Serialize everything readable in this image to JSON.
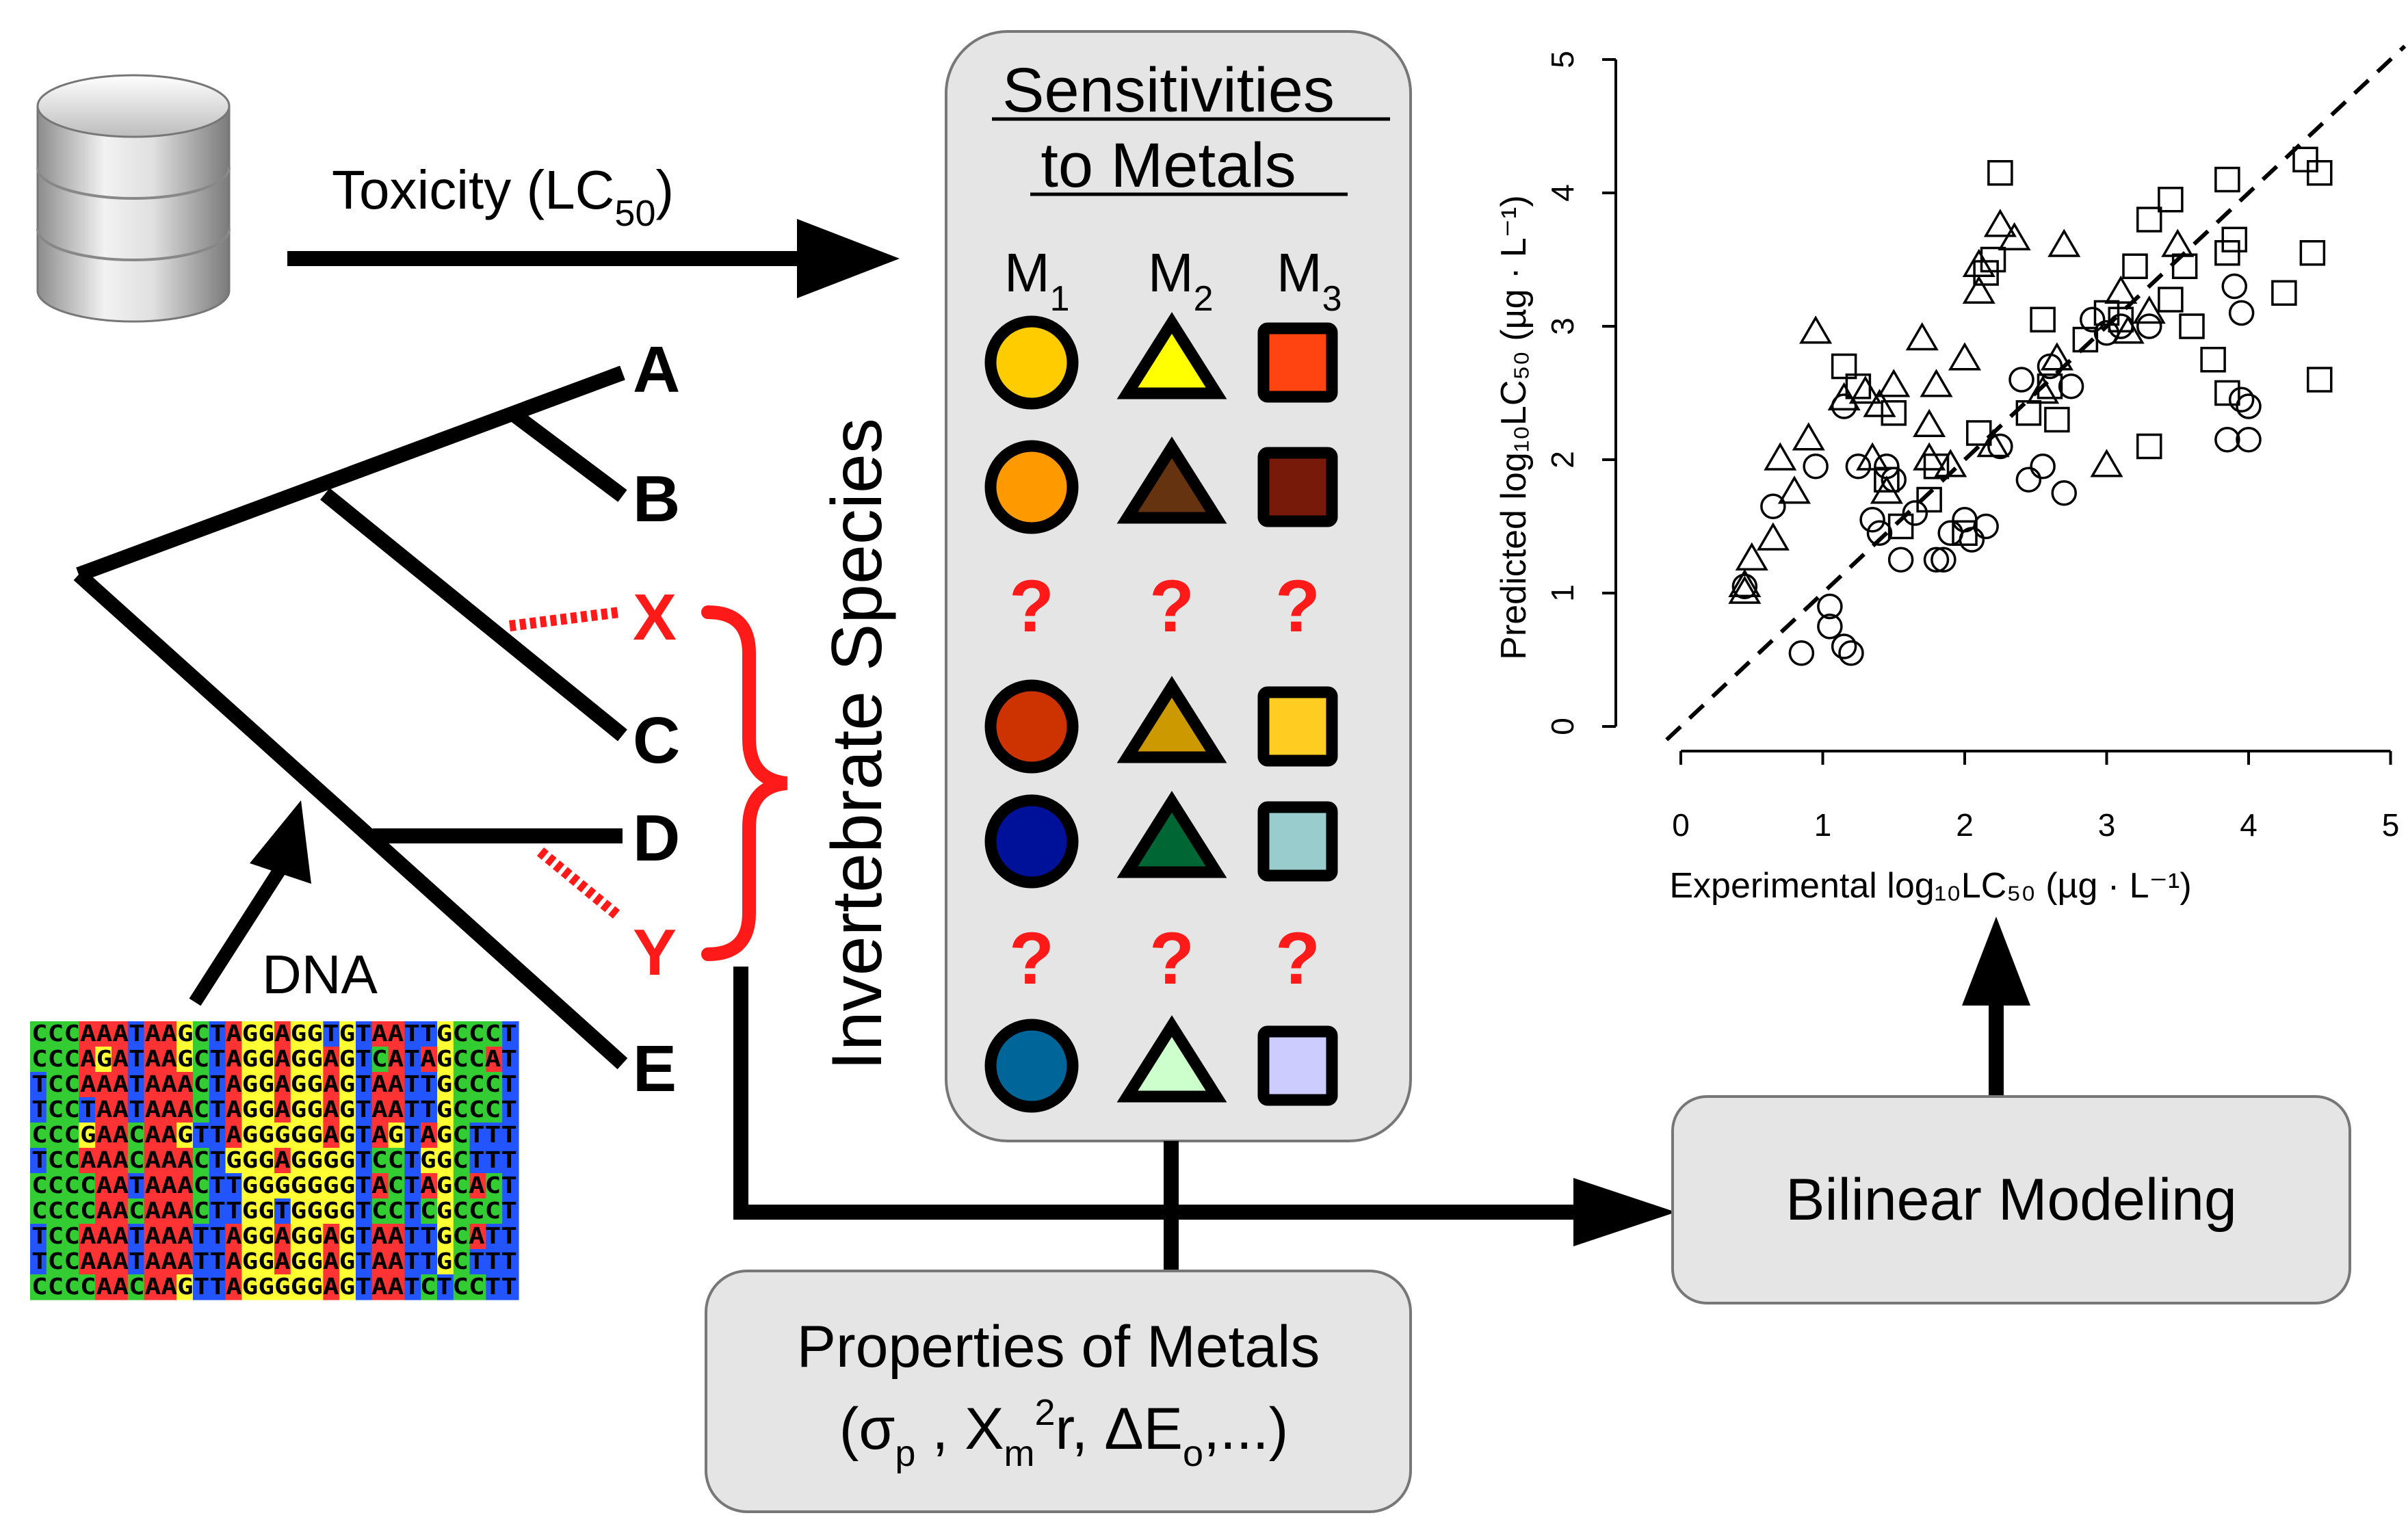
{
  "database": {
    "arrow_label": "Toxicity (LC",
    "arrow_label_sub": "50",
    "arrow_label_end": ")"
  },
  "tree": {
    "tips": [
      {
        "id": "A",
        "unknown": false
      },
      {
        "id": "B",
        "unknown": false
      },
      {
        "id": "X",
        "unknown": true
      },
      {
        "id": "C",
        "unknown": false
      },
      {
        "id": "D",
        "unknown": false
      },
      {
        "id": "Y",
        "unknown": true
      },
      {
        "id": "E",
        "unknown": false
      }
    ],
    "axis_label": "Invertebrate Species",
    "dna_label": "DNA"
  },
  "alignment": {
    "rows": [
      "CCCAAATAAGCTAGGAGGTGTAATTGCCCT",
      "CCCAGATAAGCTAGGAGGAGTCATAGCCAT",
      "TCCAAATAAACTAGGAGGAGTAATTGCCCT",
      "TCCTAATAAACTAGGAGGAGTAATTGCCCT",
      "CCCGAACAAGTTAGGGGGAGTAGTAGCTTT",
      "TCCAAACAAACTGGGAGGGGTCCTGGCTTT",
      "CCCCAATAAACTTGGGGGGGTACTAGCACT",
      "CCCCAACAAACTTGGTGGGGTCCTCGCCCT",
      "TCCAAATAAATTAGGAGGAGTAATTGCATT",
      "TCCAAATAAATTAGGAGGAGTAATTGCTTT",
      "CCCCAACAAGTTAGGGGGAGTAATCTCCTT"
    ],
    "colors": {
      "A": "#ff3333",
      "C": "#33cc33",
      "G": "#ffff33",
      "T": "#2255ff"
    }
  },
  "panel": {
    "title_line1": "Sensitivities",
    "title_line2": "to Metals",
    "metals": [
      {
        "name": "M",
        "sub": "1"
      },
      {
        "name": "M",
        "sub": "2"
      },
      {
        "name": "M",
        "sub": "3"
      }
    ],
    "rows": [
      {
        "known": true,
        "colors": [
          "#ffcc00",
          "#ffff00",
          "#ff4411"
        ]
      },
      {
        "known": true,
        "colors": [
          "#ff9900",
          "#663311",
          "#771a0a"
        ]
      },
      {
        "known": false,
        "mark": "?"
      },
      {
        "known": true,
        "colors": [
          "#cc3300",
          "#cc9900",
          "#ffcc22"
        ]
      },
      {
        "known": true,
        "colors": [
          "#001199",
          "#006633",
          "#99cccc"
        ]
      },
      {
        "known": false,
        "mark": "?"
      },
      {
        "known": true,
        "colors": [
          "#006699",
          "#ccffcc",
          "#ccccff"
        ]
      }
    ]
  },
  "properties_box": {
    "line1": "Properties of Metals",
    "line2_a": "(σ",
    "line2_b": "p",
    "line2_c": " , X",
    "line2_d": "m",
    "line2_e": "2",
    "line2_f": "r, ΔE",
    "line2_g": "o",
    "line2_h": ",...)"
  },
  "bilinear_box": {
    "label": "Bilinear Modeling"
  },
  "chart_data": {
    "type": "scatter",
    "xlabel": "Experimental log₁₀LC₅₀ (µg · L⁻¹)",
    "ylabel": "Predicted log₁₀LC₅₀ (µg · L⁻¹)",
    "xlim": [
      0,
      5
    ],
    "ylim": [
      0,
      5
    ],
    "xticks": [
      "0",
      "1",
      "2",
      "3",
      "4",
      "5"
    ],
    "yticks": [
      "0",
      "1",
      "2",
      "3",
      "4",
      "5"
    ],
    "reference_line": "y = x (dashed)",
    "series": [
      {
        "marker": "circle",
        "points": [
          [
            0.45,
            1.05
          ],
          [
            0.65,
            1.65
          ],
          [
            0.85,
            0.55
          ],
          [
            0.95,
            1.95
          ],
          [
            1.05,
            0.75
          ],
          [
            1.05,
            0.9
          ],
          [
            1.15,
            0.6
          ],
          [
            1.2,
            0.55
          ],
          [
            1.25,
            1.95
          ],
          [
            1.35,
            1.55
          ],
          [
            1.4,
            1.45
          ],
          [
            1.45,
            1.95
          ],
          [
            1.5,
            1.85
          ],
          [
            1.55,
            1.25
          ],
          [
            1.65,
            1.6
          ],
          [
            1.8,
            1.25
          ],
          [
            1.85,
            1.25
          ],
          [
            1.9,
            1.45
          ],
          [
            2.0,
            1.55
          ],
          [
            2.05,
            1.4
          ],
          [
            2.15,
            1.5
          ],
          [
            2.25,
            2.1
          ],
          [
            2.4,
            2.6
          ],
          [
            2.45,
            1.85
          ],
          [
            2.55,
            1.95
          ],
          [
            2.6,
            2.7
          ],
          [
            2.7,
            1.75
          ],
          [
            2.75,
            2.55
          ],
          [
            2.9,
            3.05
          ],
          [
            3.0,
            2.95
          ],
          [
            3.1,
            3.0
          ],
          [
            3.3,
            3.0
          ],
          [
            3.85,
            2.15
          ],
          [
            3.95,
            3.1
          ],
          [
            3.9,
            3.3
          ],
          [
            3.95,
            2.45
          ],
          [
            4.0,
            2.15
          ],
          [
            4.0,
            2.4
          ],
          [
            1.15,
            2.4
          ]
        ]
      },
      {
        "marker": "triangle",
        "points": [
          [
            0.45,
            1.0
          ],
          [
            0.45,
            1.05
          ],
          [
            0.5,
            1.25
          ],
          [
            0.65,
            1.4
          ],
          [
            0.7,
            2.0
          ],
          [
            0.8,
            1.75
          ],
          [
            0.9,
            2.15
          ],
          [
            0.95,
            2.95
          ],
          [
            1.15,
            2.45
          ],
          [
            1.3,
            2.5
          ],
          [
            1.35,
            2.0
          ],
          [
            1.4,
            2.4
          ],
          [
            1.45,
            1.75
          ],
          [
            1.5,
            2.55
          ],
          [
            1.7,
            2.9
          ],
          [
            1.75,
            2.0
          ],
          [
            1.8,
            2.55
          ],
          [
            1.75,
            2.25
          ],
          [
            1.9,
            1.95
          ],
          [
            2.0,
            2.75
          ],
          [
            2.1,
            3.45
          ],
          [
            2.1,
            3.25
          ],
          [
            2.2,
            2.1
          ],
          [
            2.25,
            3.75
          ],
          [
            2.35,
            3.65
          ],
          [
            2.55,
            2.5
          ],
          [
            2.65,
            2.75
          ],
          [
            3.0,
            1.95
          ],
          [
            3.1,
            3.25
          ],
          [
            3.15,
            2.95
          ],
          [
            3.3,
            3.1
          ],
          [
            3.5,
            3.6
          ],
          [
            2.7,
            3.6
          ]
        ]
      },
      {
        "marker": "square",
        "points": [
          [
            1.15,
            2.7
          ],
          [
            1.25,
            2.55
          ],
          [
            1.45,
            1.85
          ],
          [
            1.5,
            2.35
          ],
          [
            1.55,
            1.5
          ],
          [
            1.75,
            1.7
          ],
          [
            1.8,
            1.95
          ],
          [
            2.0,
            1.45
          ],
          [
            2.15,
            3.4
          ],
          [
            2.2,
            3.5
          ],
          [
            2.25,
            4.15
          ],
          [
            2.45,
            2.35
          ],
          [
            2.55,
            3.05
          ],
          [
            2.65,
            2.3
          ],
          [
            2.85,
            2.9
          ],
          [
            3.0,
            3.1
          ],
          [
            3.1,
            3.05
          ],
          [
            3.2,
            3.45
          ],
          [
            3.3,
            2.1
          ],
          [
            3.3,
            3.8
          ],
          [
            3.45,
            3.2
          ],
          [
            3.45,
            3.95
          ],
          [
            3.55,
            3.45
          ],
          [
            3.75,
            2.75
          ],
          [
            3.85,
            3.55
          ],
          [
            3.85,
            4.1
          ],
          [
            3.9,
            3.65
          ],
          [
            3.85,
            2.5
          ],
          [
            4.25,
            3.25
          ],
          [
            4.4,
            4.25
          ],
          [
            4.45,
            3.55
          ],
          [
            4.5,
            2.6
          ],
          [
            4.5,
            4.15
          ],
          [
            2.1,
            2.2
          ],
          [
            2.6,
            2.55
          ],
          [
            3.6,
            3.0
          ]
        ]
      }
    ]
  }
}
